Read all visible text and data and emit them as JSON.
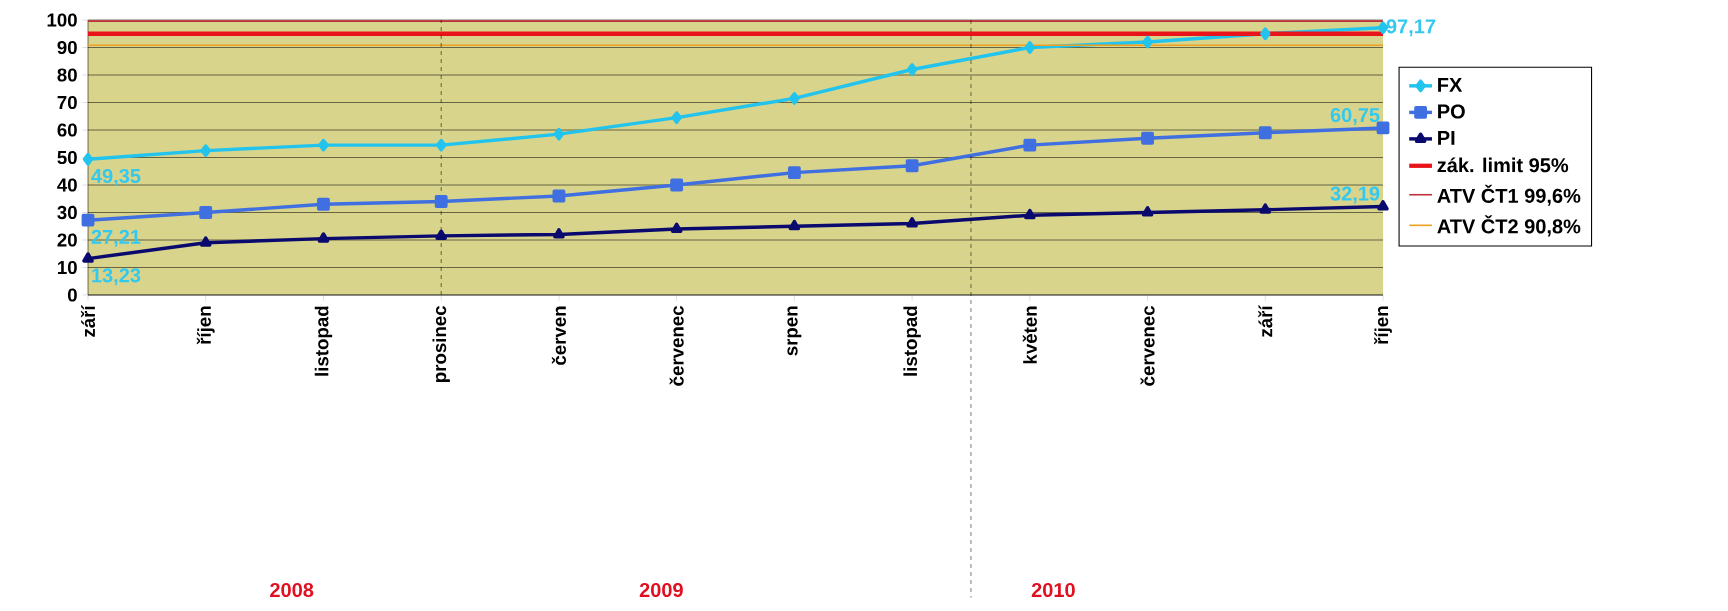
{
  "chart_data": {
    "type": "line",
    "categories": [
      "září",
      "říjen",
      "listopad",
      "prosinec",
      "červen",
      "červenec",
      "srpen",
      "listopad",
      "květen",
      "červenec",
      "září",
      "říjen"
    ],
    "series": [
      {
        "name": "FX",
        "color": "#22c4ee",
        "marker": "diamond",
        "values": [
          49.35,
          52.5,
          54.5,
          54.5,
          58.5,
          64.5,
          71.5,
          82,
          90,
          92,
          95,
          97.17
        ],
        "value_labels": [
          "49,35",
          null,
          null,
          null,
          null,
          null,
          null,
          null,
          null,
          null,
          null,
          "97,17"
        ]
      },
      {
        "name": "PO",
        "color": "#3f6fe0",
        "marker": "square",
        "values": [
          27.21,
          30,
          33,
          34,
          36,
          40,
          44.5,
          47,
          54.5,
          57,
          59,
          60.75
        ],
        "value_labels": [
          "27,21",
          null,
          null,
          null,
          null,
          null,
          null,
          null,
          null,
          null,
          null,
          "60,75"
        ]
      },
      {
        "name": "PI",
        "color": "#0a0a6e",
        "marker": "triangle",
        "values": [
          13.23,
          19,
          20.5,
          21.5,
          22,
          24,
          25,
          26,
          29,
          30,
          31,
          32.19
        ],
        "value_labels": [
          "13,23",
          null,
          null,
          null,
          null,
          null,
          null,
          null,
          null,
          null,
          null,
          "32,19"
        ]
      }
    ],
    "ref_lines": [
      {
        "axis": "y",
        "value": 95,
        "label": "zák. limit 95%",
        "color": "#e8141a"
      },
      {
        "axis": "y",
        "value": 99.6,
        "label": "ATV ČT1 99,6%",
        "color": "#c0303a"
      },
      {
        "axis": "y",
        "value": 90.8,
        "label": "ATV ČT2 90,8%",
        "color": "#f0a020"
      },
      {
        "axis": "x",
        "value": "prosinec",
        "color": "#000000",
        "line_style": "dashed"
      }
    ],
    "annotations": [
      "2008",
      "2009",
      "2010"
    ],
    "ylim": [
      0,
      100
    ],
    "yticks": [
      0,
      10,
      20,
      30,
      40,
      50,
      60,
      70,
      80,
      90,
      100
    ],
    "grid": "y",
    "legend": "right",
    "line_style": "solid"
  }
}
